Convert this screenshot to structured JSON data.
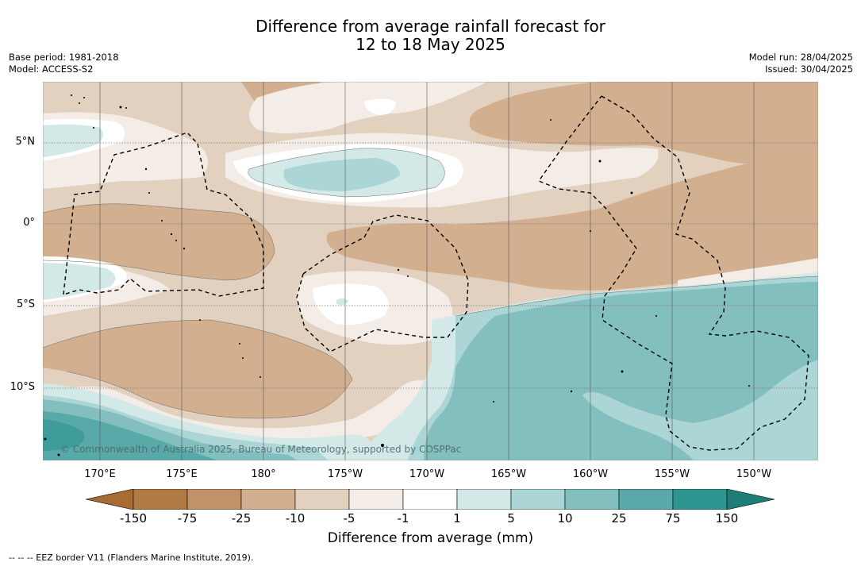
{
  "title": {
    "line1": "Difference from average rainfall forecast for",
    "line2": "12 to 18 May 2025"
  },
  "meta_left": {
    "base_period": "Base period: 1981-2018",
    "model": "Model: ACCESS-S2"
  },
  "meta_right": {
    "model_run": "Model run: 28/04/2025",
    "issued": "Issued: 30/04/2025"
  },
  "map": {
    "lat_labels": [
      "5°N",
      "0°",
      "5°S",
      "10°S"
    ],
    "lon_labels": [
      "170°E",
      "175°E",
      "180°",
      "175°W",
      "170°W",
      "165°W",
      "160°W",
      "155°W",
      "150°W"
    ],
    "copyright": "© Commonwealth of Australia 2025, Bureau of Meteorology, supported by COSPPac",
    "colors": {
      "dry_75_150": "#b07a44",
      "dry_25_75": "#bf9268",
      "dry_10_25": "#d2af8f",
      "dry_5_10": "#e3d1c0",
      "dry_1_5": "#f4ede7",
      "neutral": "#ffffff",
      "wet_1_5": "#d3e9e8",
      "wet_5_10": "#abd6d5",
      "wet_10_25": "#84bfbf",
      "wet_25_75": "#58a9a8",
      "wet_75_150": "#2d9690"
    }
  },
  "colorbar": {
    "labels": [
      "-150",
      "-75",
      "-25",
      "-10",
      "-5",
      "-1",
      "1",
      "5",
      "10",
      "25",
      "75",
      "150"
    ],
    "colors": [
      "#a86c33",
      "#b07a44",
      "#bf9268",
      "#d2af8f",
      "#e3d1c0",
      "#f4ede7",
      "#ffffff",
      "#d3e9e8",
      "#abd6d5",
      "#84bfbf",
      "#58a9a8",
      "#2d9690",
      "#1f7e78"
    ],
    "title": "Difference from average (mm)"
  },
  "footnote": "--  --  -- EEZ border V11 (Flanders Marine Institute, 2019)."
}
